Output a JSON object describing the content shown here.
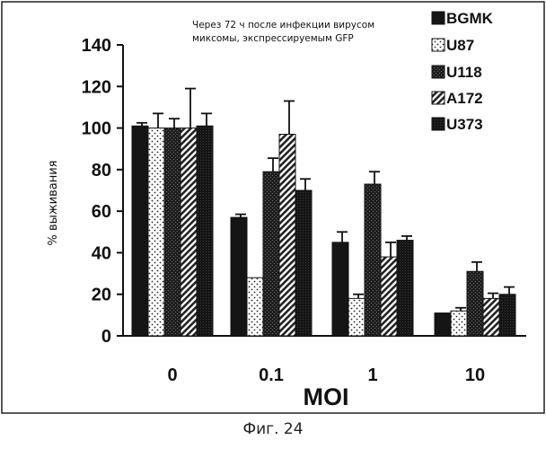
{
  "chart_data": {
    "type": "bar",
    "title": "Через 72 ч после инфекции вирусом\nмиксомы, экспрессируемым GFP",
    "xlabel": "MOI",
    "ylabel": "% выживания",
    "categories": [
      "0",
      "0.1",
      "1",
      "10"
    ],
    "ylim": [
      0,
      140
    ],
    "yticks": [
      0,
      20,
      40,
      60,
      80,
      100,
      120,
      140
    ],
    "grid": false,
    "legend_position": "top-right",
    "series": [
      {
        "name": "BGMK",
        "pattern": "solid",
        "color": "#151515",
        "values": [
          101,
          57,
          45,
          11
        ],
        "errors": [
          1.5,
          1.5,
          5,
          0
        ]
      },
      {
        "name": "U87",
        "pattern": "dots",
        "color": "#151515",
        "values": [
          100,
          28,
          18,
          12
        ],
        "errors": [
          7,
          0,
          2,
          1.5
        ]
      },
      {
        "name": "U118",
        "pattern": "dark-dots",
        "color": "#151515",
        "values": [
          100,
          79,
          73,
          31
        ],
        "errors": [
          4.5,
          6.5,
          6,
          4.5
        ]
      },
      {
        "name": "A172",
        "pattern": "diagonal",
        "color": "#151515",
        "values": [
          100,
          97,
          38,
          18
        ],
        "errors": [
          19,
          16,
          7,
          2.5
        ]
      },
      {
        "name": "U373",
        "pattern": "dense",
        "color": "#151515",
        "values": [
          101,
          70,
          46,
          20
        ],
        "errors": [
          6,
          5.5,
          2,
          3.5
        ]
      }
    ]
  },
  "caption": "Фиг. 24"
}
